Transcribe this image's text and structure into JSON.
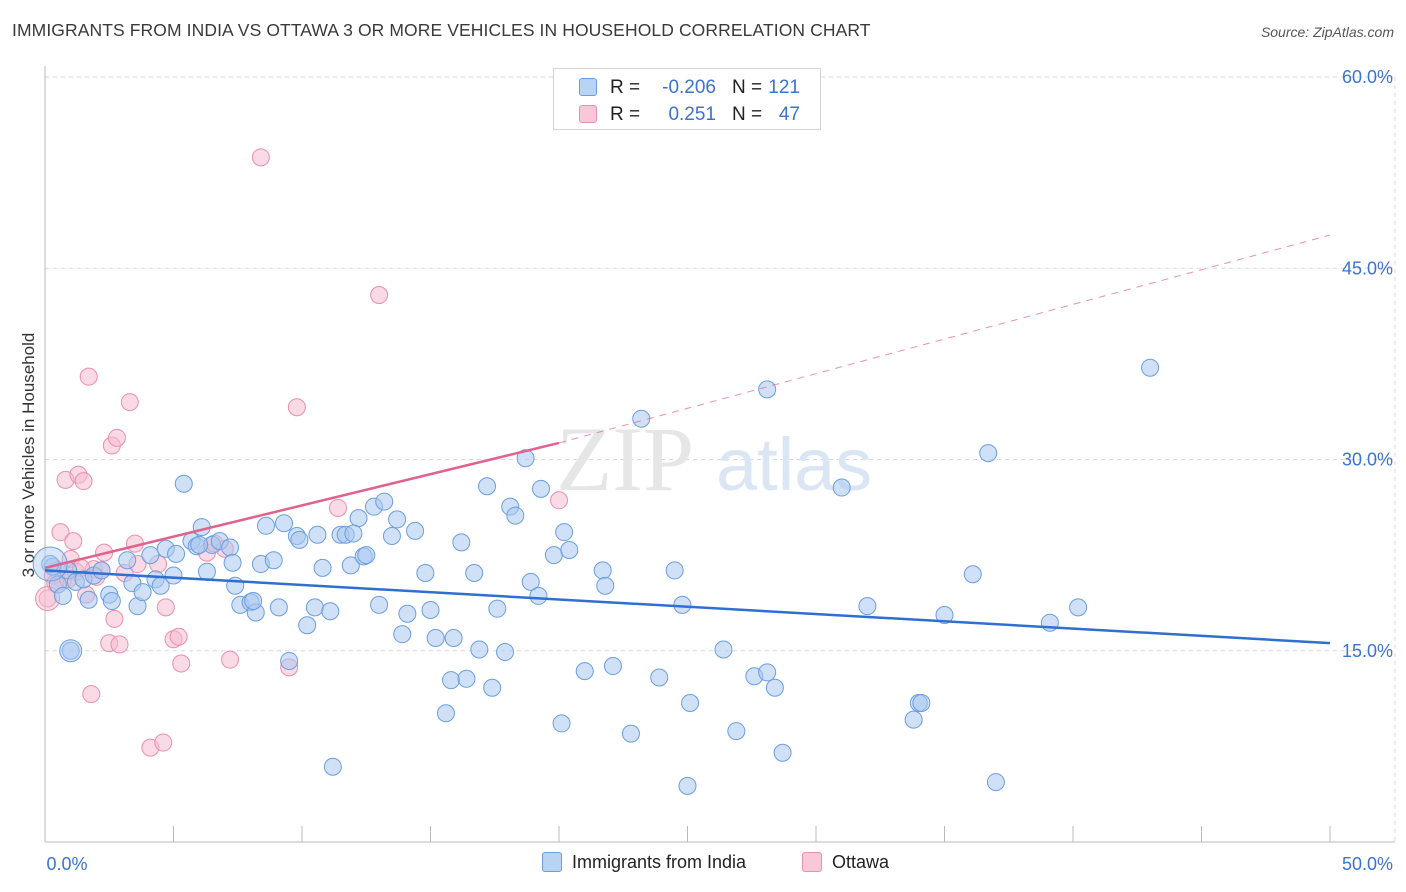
{
  "title": "IMMIGRANTS FROM INDIA VS OTTAWA 3 OR MORE VEHICLES IN HOUSEHOLD CORRELATION CHART",
  "source": "Source: ZipAtlas.com",
  "watermark": {
    "zip": "ZIP",
    "atlas": "atlas"
  },
  "legend": {
    "rows": [
      {
        "r_label": "R =",
        "r_value": "-0.206",
        "n_label": "N =",
        "n_value": "121"
      },
      {
        "r_label": "R =",
        "r_value": "0.251",
        "n_label": "N =",
        "n_value": "47"
      }
    ]
  },
  "bottom_legend": {
    "series_a": "Immigrants from India",
    "series_b": "Ottawa"
  },
  "colors": {
    "blue_fill": "#a9c8f0",
    "blue_stroke": "#6a9ee0",
    "blue_line": "#2f6fd0",
    "pink_fill": "#f6bcd0",
    "pink_stroke": "#e98fae",
    "pink_line": "#e0628e",
    "grid": "#d9d9d9",
    "tick_label": "#3a73d0",
    "axis": "#bbbbbb"
  },
  "chart_data": {
    "type": "scatter",
    "title": "IMMIGRANTS FROM INDIA VS OTTAWA 3 OR MORE VEHICLES IN HOUSEHOLD CORRELATION CHART",
    "xlabel": "",
    "ylabel": "3 or more Vehicles in Household",
    "xlim": [
      0,
      50
    ],
    "ylim": [
      0,
      60
    ],
    "x_tick_labels": [
      "0.0%",
      "50.0%"
    ],
    "y_ticks": [
      15,
      30,
      45,
      60
    ],
    "y_tick_labels": [
      "15.0%",
      "30.0%",
      "45.0%",
      "60.0%"
    ],
    "grid": true,
    "legend_position": "top-center",
    "series": [
      {
        "name": "Immigrants from India",
        "color": "#a9c8f0",
        "trend": {
          "x": [
            0,
            50
          ],
          "y": [
            21.3,
            15.6
          ],
          "style": "solid"
        },
        "points": [
          [
            0.3,
            21.6
          ],
          [
            0.5,
            20.2
          ],
          [
            0.7,
            19.3
          ],
          [
            0.9,
            21.3
          ],
          [
            1.0,
            15.0
          ],
          [
            1.2,
            20.4
          ],
          [
            1.5,
            20.6
          ],
          [
            1.7,
            19.0
          ],
          [
            1.9,
            20.9
          ],
          [
            2.2,
            21.3
          ],
          [
            2.5,
            19.4
          ],
          [
            2.6,
            18.9
          ],
          [
            3.2,
            22.1
          ],
          [
            3.4,
            20.3
          ],
          [
            3.6,
            18.5
          ],
          [
            3.8,
            19.6
          ],
          [
            4.1,
            22.5
          ],
          [
            4.3,
            20.6
          ],
          [
            4.5,
            20.1
          ],
          [
            4.7,
            23.0
          ],
          [
            5.0,
            20.9
          ],
          [
            5.1,
            22.6
          ],
          [
            5.4,
            28.1
          ],
          [
            5.7,
            23.6
          ],
          [
            5.9,
            23.2
          ],
          [
            6.1,
            24.7
          ],
          [
            6.3,
            21.2
          ],
          [
            6.5,
            23.3
          ],
          [
            6.8,
            23.6
          ],
          [
            7.2,
            23.1
          ],
          [
            7.3,
            21.9
          ],
          [
            7.4,
            20.1
          ],
          [
            7.6,
            18.6
          ],
          [
            8.0,
            18.8
          ],
          [
            8.2,
            18.0
          ],
          [
            8.4,
            21.8
          ],
          [
            8.6,
            24.8
          ],
          [
            8.9,
            22.1
          ],
          [
            9.1,
            18.4
          ],
          [
            9.3,
            25.0
          ],
          [
            9.5,
            14.2
          ],
          [
            9.8,
            24.0
          ],
          [
            9.9,
            23.7
          ],
          [
            10.2,
            17.0
          ],
          [
            10.5,
            18.4
          ],
          [
            10.6,
            24.1
          ],
          [
            10.8,
            21.5
          ],
          [
            11.1,
            18.1
          ],
          [
            11.2,
            5.9
          ],
          [
            11.5,
            24.1
          ],
          [
            11.7,
            24.1
          ],
          [
            11.9,
            21.7
          ],
          [
            12.2,
            25.4
          ],
          [
            12.4,
            22.4
          ],
          [
            12.5,
            22.5
          ],
          [
            12.8,
            26.3
          ],
          [
            13.0,
            18.6
          ],
          [
            13.2,
            26.7
          ],
          [
            13.5,
            24.0
          ],
          [
            13.7,
            25.3
          ],
          [
            13.9,
            16.3
          ],
          [
            14.1,
            17.9
          ],
          [
            14.4,
            24.4
          ],
          [
            14.8,
            21.1
          ],
          [
            15.0,
            18.2
          ],
          [
            15.2,
            16.0
          ],
          [
            15.6,
            10.1
          ],
          [
            15.8,
            12.7
          ],
          [
            15.9,
            16.0
          ],
          [
            16.2,
            23.5
          ],
          [
            16.4,
            12.8
          ],
          [
            16.7,
            21.1
          ],
          [
            16.9,
            15.1
          ],
          [
            17.2,
            27.9
          ],
          [
            17.4,
            12.1
          ],
          [
            17.6,
            18.3
          ],
          [
            17.9,
            14.9
          ],
          [
            18.1,
            26.3
          ],
          [
            18.3,
            25.6
          ],
          [
            18.7,
            30.1
          ],
          [
            18.9,
            20.4
          ],
          [
            19.2,
            19.3
          ],
          [
            19.3,
            27.7
          ],
          [
            19.8,
            22.5
          ],
          [
            20.1,
            9.3
          ],
          [
            20.2,
            24.3
          ],
          [
            20.4,
            22.9
          ],
          [
            21.0,
            13.4
          ],
          [
            21.7,
            21.3
          ],
          [
            21.8,
            20.1
          ],
          [
            22.1,
            13.8
          ],
          [
            22.8,
            8.5
          ],
          [
            23.2,
            33.2
          ],
          [
            23.9,
            12.9
          ],
          [
            24.5,
            21.3
          ],
          [
            24.8,
            18.6
          ],
          [
            25.0,
            4.4
          ],
          [
            25.1,
            10.9
          ],
          [
            26.4,
            15.1
          ],
          [
            26.9,
            8.7
          ],
          [
            27.6,
            13.0
          ],
          [
            28.1,
            35.5
          ],
          [
            28.1,
            13.3
          ],
          [
            28.4,
            12.1
          ],
          [
            28.7,
            7.0
          ],
          [
            31.0,
            27.8
          ],
          [
            32.0,
            18.5
          ],
          [
            33.8,
            9.6
          ],
          [
            34.0,
            10.9
          ],
          [
            35.0,
            17.8
          ],
          [
            36.1,
            21.0
          ],
          [
            36.7,
            30.5
          ],
          [
            37.0,
            4.7
          ],
          [
            39.1,
            17.2
          ],
          [
            40.2,
            18.4
          ],
          [
            43.0,
            37.2
          ],
          [
            34.1,
            10.9
          ],
          [
            0.2,
            21.8
          ],
          [
            6.0,
            23.3
          ],
          [
            12.0,
            24.2
          ],
          [
            8.1,
            18.9
          ]
        ]
      },
      {
        "name": "Ottawa",
        "color": "#f6bcd0",
        "trend": {
          "x": [
            0,
            20
          ],
          "y": [
            21.5,
            31.3
          ],
          "style": "solid",
          "extended_to": [
            50,
            47.6
          ],
          "extended_style": "dashed"
        },
        "points": [
          [
            0.1,
            19.1
          ],
          [
            0.3,
            20.9
          ],
          [
            0.5,
            21.3
          ],
          [
            0.6,
            24.3
          ],
          [
            0.7,
            20.5
          ],
          [
            0.8,
            28.4
          ],
          [
            1.0,
            22.2
          ],
          [
            1.1,
            23.6
          ],
          [
            1.2,
            21.2
          ],
          [
            1.3,
            28.8
          ],
          [
            1.5,
            28.3
          ],
          [
            1.6,
            19.4
          ],
          [
            1.7,
            36.5
          ],
          [
            1.8,
            11.6
          ],
          [
            1.9,
            21.4
          ],
          [
            2.0,
            20.8
          ],
          [
            2.3,
            22.7
          ],
          [
            2.5,
            15.6
          ],
          [
            2.6,
            31.1
          ],
          [
            2.7,
            17.5
          ],
          [
            2.8,
            31.7
          ],
          [
            2.9,
            15.5
          ],
          [
            3.1,
            21.1
          ],
          [
            3.3,
            34.5
          ],
          [
            3.5,
            23.4
          ],
          [
            3.6,
            21.8
          ],
          [
            4.1,
            7.4
          ],
          [
            4.4,
            21.8
          ],
          [
            4.6,
            7.8
          ],
          [
            4.7,
            18.4
          ],
          [
            5.0,
            15.9
          ],
          [
            5.2,
            16.1
          ],
          [
            5.3,
            14.0
          ],
          [
            6.3,
            22.7
          ],
          [
            6.6,
            23.4
          ],
          [
            7.0,
            23.0
          ],
          [
            7.2,
            14.3
          ],
          [
            8.4,
            53.7
          ],
          [
            9.5,
            13.7
          ],
          [
            9.8,
            34.1
          ],
          [
            11.4,
            26.2
          ],
          [
            13.0,
            42.9
          ],
          [
            20.0,
            26.8
          ],
          [
            0.4,
            20.3
          ],
          [
            1.4,
            21.5
          ],
          [
            2.2,
            21.3
          ],
          [
            0.9,
            20.6
          ]
        ]
      }
    ]
  }
}
